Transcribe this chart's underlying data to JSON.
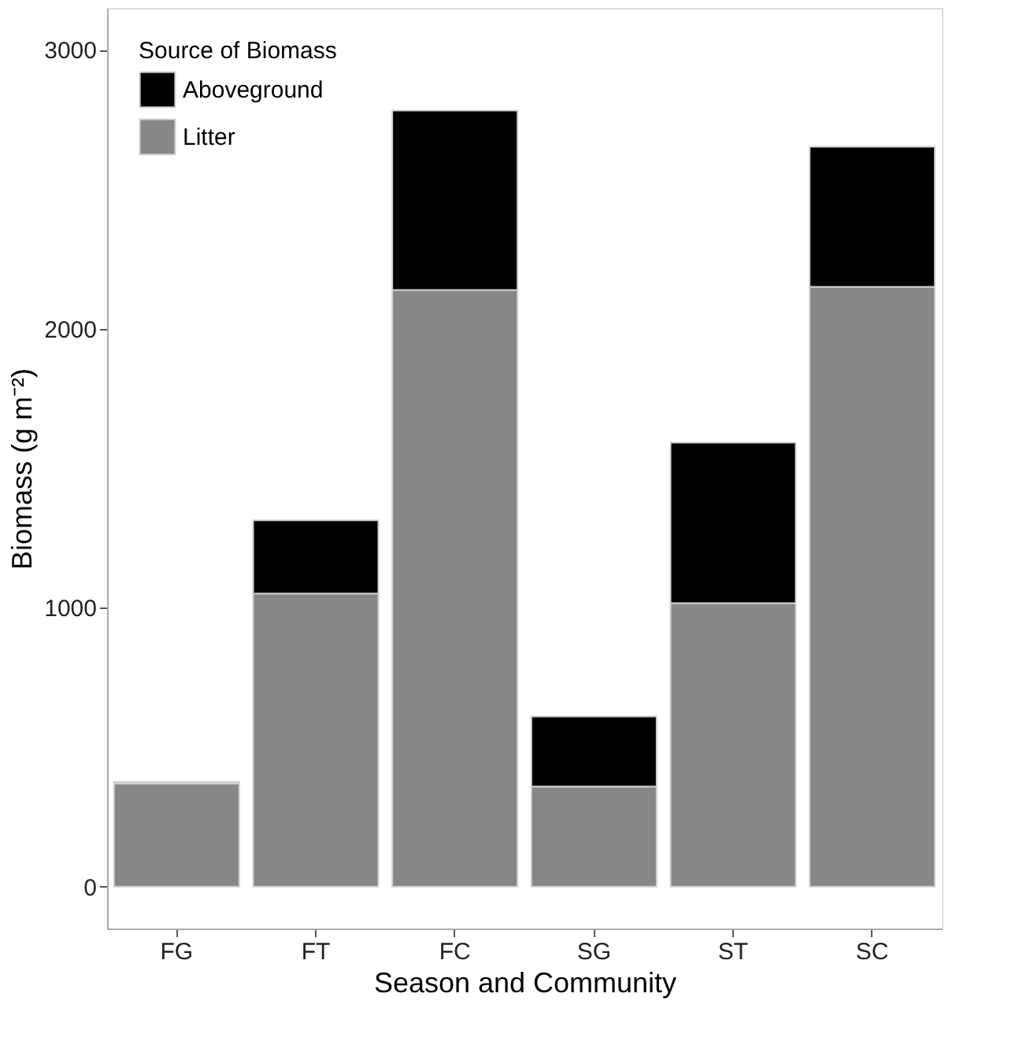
{
  "chart_data": {
    "type": "bar",
    "stacked": true,
    "xlabel": "Season and Community",
    "ylabel": "Biomass (g m⁻²)",
    "legend_title": "Source of Biomass",
    "categories": [
      "FG",
      "FT",
      "FC",
      "SG",
      "ST",
      "SC"
    ],
    "series": [
      {
        "name": "Litter",
        "color": "#878787",
        "values": [
          370,
          1051,
          2139,
          359,
          1016,
          2150
        ]
      },
      {
        "name": "Aboveground",
        "color": "#000000",
        "values": [
          5,
          262,
          643,
          251,
          576,
          502
        ]
      }
    ],
    "ylim": [
      -150,
      3150
    ],
    "yticks": [
      0,
      1000,
      2000,
      3000
    ],
    "grid": false,
    "legend": "top left"
  }
}
